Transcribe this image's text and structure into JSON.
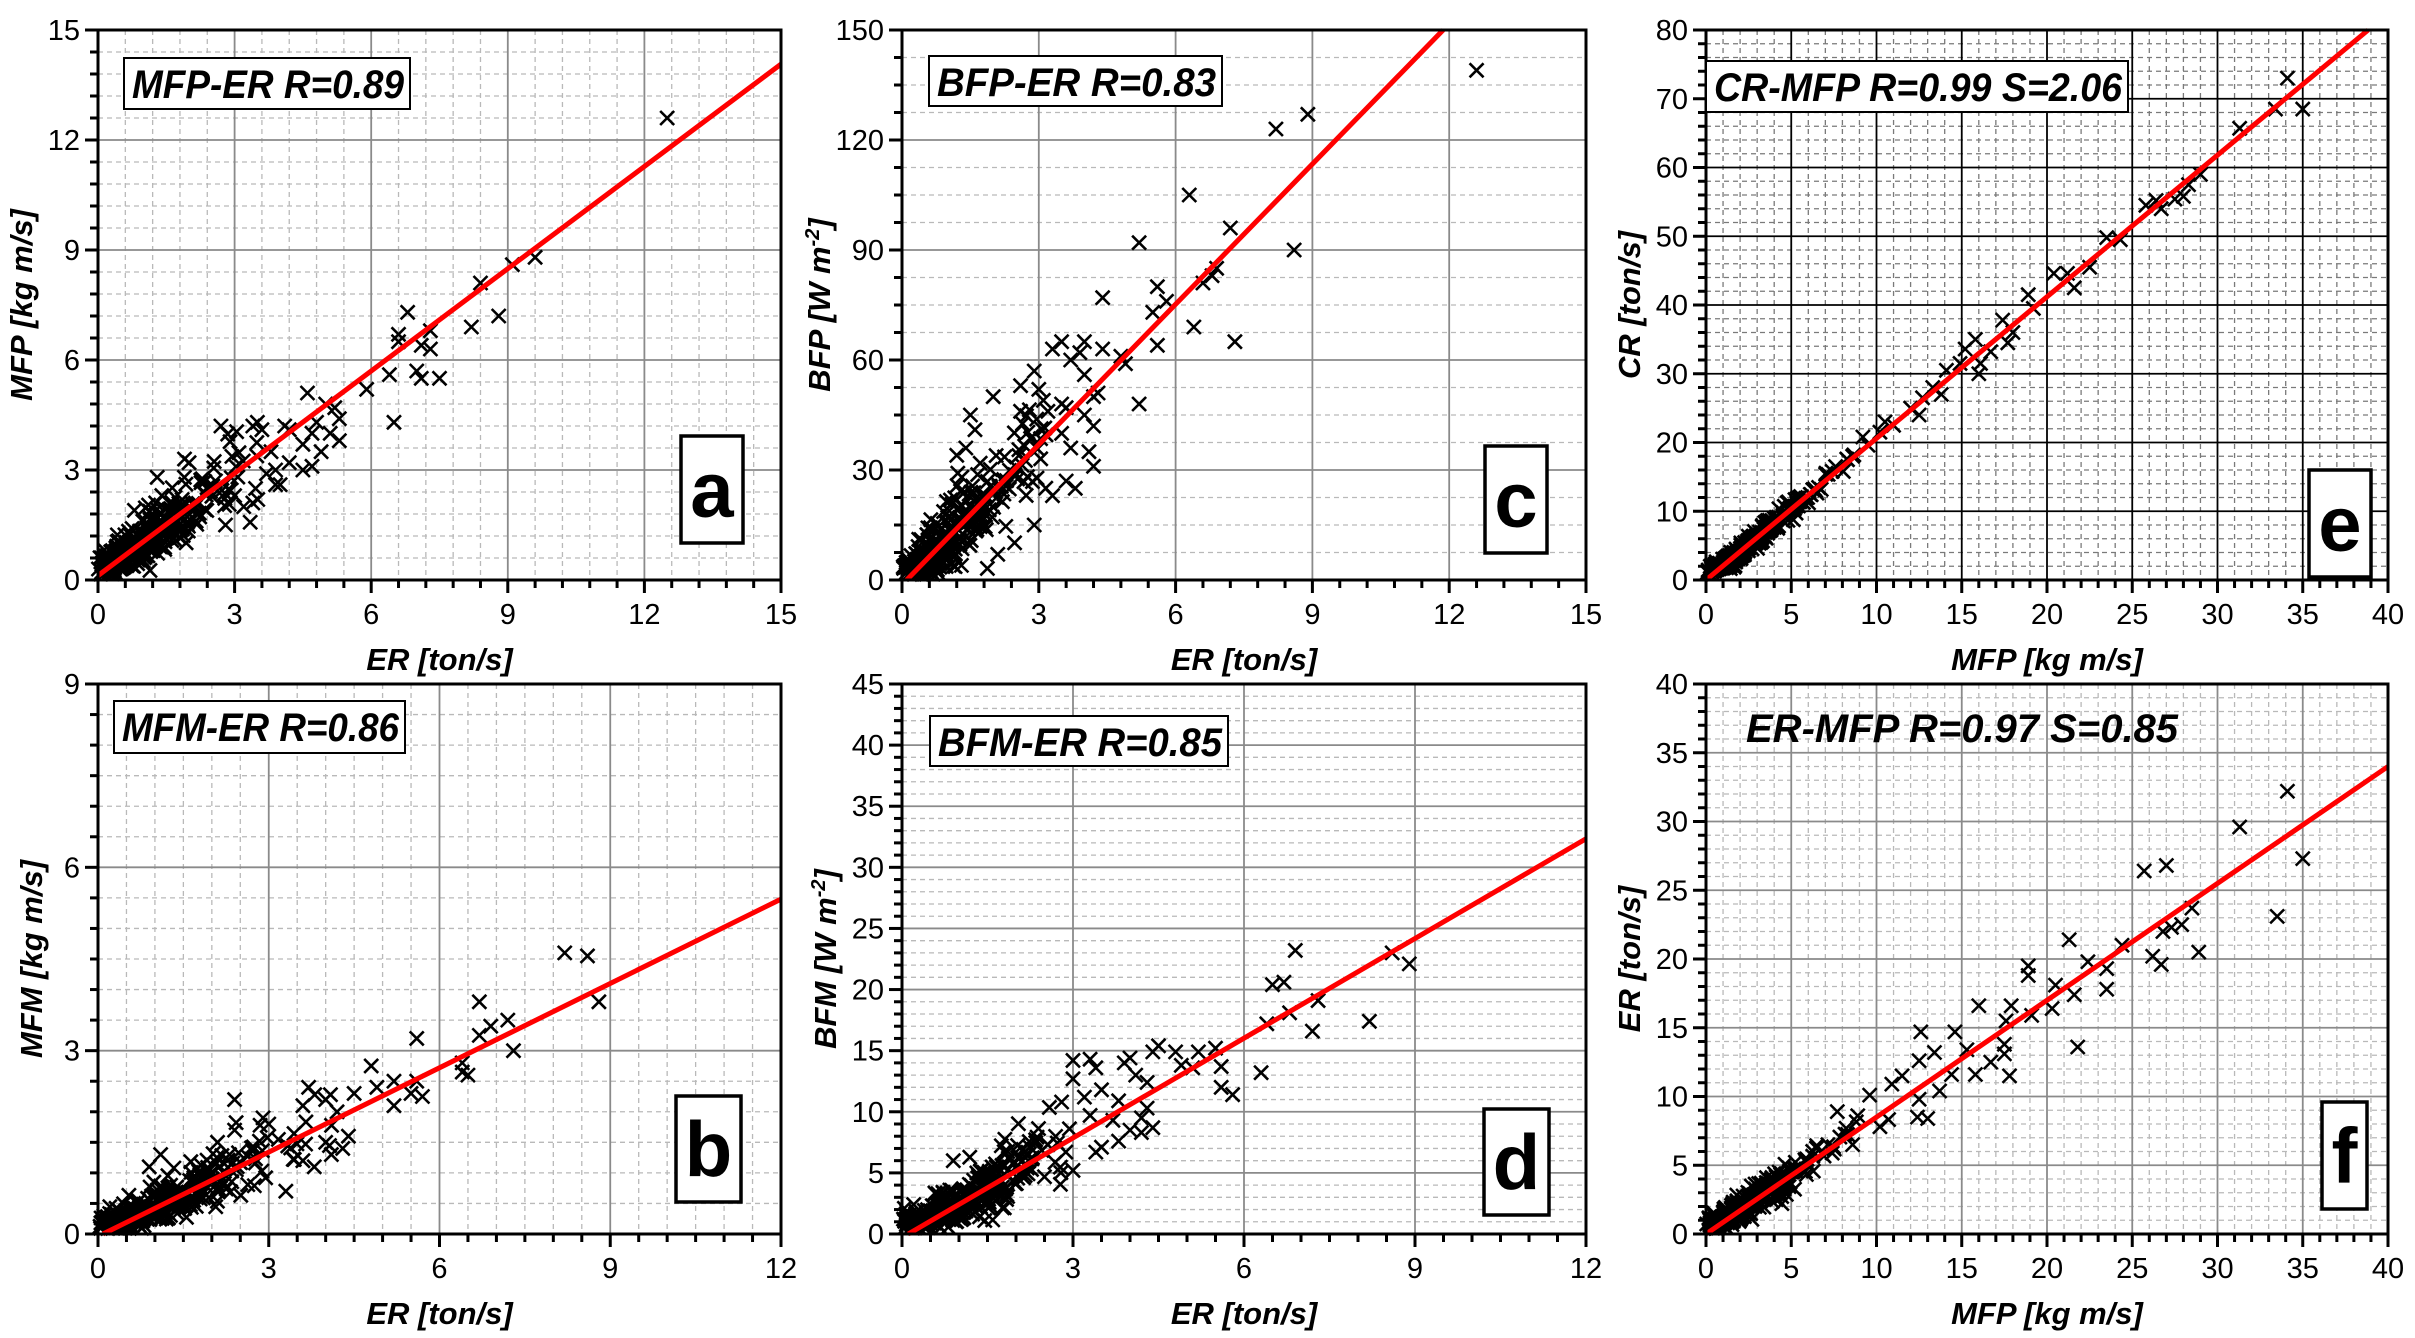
{
  "chart_data": [
    {
      "id": "a",
      "type": "scatter",
      "panel_letter": "a",
      "annotation": "MFP-ER  R=0.89",
      "xlabel": "ER [ton/s]",
      "ylabel": "MFP [kg m/s]",
      "xlim": [
        0,
        15
      ],
      "ylim": [
        0,
        15
      ],
      "xticks": [
        0,
        3,
        6,
        9,
        12,
        15
      ],
      "yticks": [
        0,
        3,
        6,
        9,
        12,
        15
      ],
      "x_minor_step": 0.6,
      "y_minor_step": 0.6,
      "grid": {
        "major": "solid-gray",
        "minor_x": true,
        "minor_y": true
      },
      "fit": {
        "slope": 0.93,
        "intercept": 0.12
      },
      "cluster": {
        "x_max": 3.6,
        "x_mean": 1.5,
        "slope": 0.93,
        "intercept": 0.12,
        "spread": 0.45,
        "count": 320
      },
      "points": [
        [
          12.5,
          12.6
        ],
        [
          9.6,
          8.8
        ],
        [
          9.1,
          8.6
        ],
        [
          8.4,
          8.1
        ],
        [
          8.8,
          7.2
        ],
        [
          8.2,
          6.9
        ],
        [
          6.8,
          7.3
        ],
        [
          6.6,
          6.7
        ],
        [
          6.6,
          6.5
        ],
        [
          7.3,
          6.8
        ],
        [
          7.1,
          6.4
        ],
        [
          7.3,
          6.3
        ],
        [
          7.0,
          5.7
        ],
        [
          7.1,
          5.5
        ],
        [
          7.5,
          5.5
        ],
        [
          6.4,
          5.6
        ],
        [
          5.9,
          5.2
        ],
        [
          6.5,
          4.3
        ],
        [
          4.6,
          5.1
        ],
        [
          5.0,
          4.8
        ],
        [
          5.2,
          4.7
        ],
        [
          5.3,
          4.4
        ],
        [
          5.3,
          3.8
        ],
        [
          5.1,
          4.0
        ],
        [
          4.7,
          4.0
        ],
        [
          4.8,
          4.3
        ],
        [
          4.5,
          3.7
        ],
        [
          4.9,
          3.5
        ],
        [
          4.7,
          3.1
        ],
        [
          4.5,
          3.0
        ],
        [
          4.2,
          3.2
        ],
        [
          4.0,
          2.6
        ],
        [
          3.9,
          2.6
        ],
        [
          4.1,
          4.2
        ],
        [
          4.2,
          4.1
        ],
        [
          3.5,
          4.3
        ],
        [
          3.4,
          4.2
        ],
        [
          3.6,
          4.1
        ],
        [
          3.8,
          3.5
        ],
        [
          3.7,
          2.9
        ],
        [
          3.9,
          3.0
        ],
        [
          3.4,
          2.1
        ],
        [
          3.2,
          2.0
        ],
        [
          3.0,
          2.3
        ],
        [
          2.8,
          1.5
        ],
        [
          2.7,
          4.2
        ],
        [
          2.0,
          3.2
        ],
        [
          1.9,
          3.3
        ],
        [
          1.3,
          2.8
        ],
        [
          0.8,
          1.9
        ]
      ]
    },
    {
      "id": "b",
      "type": "scatter",
      "panel_letter": "b",
      "annotation": "MFM-ER  R=0.86",
      "xlabel": "ER [ton/s]",
      "ylabel": "MFM [kg m/s]",
      "xlim": [
        0,
        12
      ],
      "ylim": [
        0,
        9
      ],
      "xticks": [
        0,
        3,
        6,
        9,
        12
      ],
      "yticks": [
        0,
        3,
        6,
        9
      ],
      "x_minor_step": 0.5,
      "y_minor_step": 0.5,
      "grid": {
        "major": "solid-gray",
        "minor_x": true,
        "minor_y": true
      },
      "fit": {
        "slope": 0.46,
        "intercept": -0.04
      },
      "cluster": {
        "x_max": 4.4,
        "x_mean": 1.7,
        "slope": 0.46,
        "intercept": -0.04,
        "spread": 0.25,
        "count": 320
      },
      "points": [
        [
          8.2,
          4.6
        ],
        [
          8.6,
          4.55
        ],
        [
          8.8,
          3.8
        ],
        [
          6.7,
          3.8
        ],
        [
          7.2,
          3.5
        ],
        [
          6.9,
          3.4
        ],
        [
          6.7,
          3.25
        ],
        [
          7.3,
          3.0
        ],
        [
          5.6,
          3.2
        ],
        [
          6.4,
          2.8
        ],
        [
          6.4,
          2.65
        ],
        [
          6.5,
          2.6
        ],
        [
          4.8,
          2.75
        ],
        [
          4.9,
          2.4
        ],
        [
          5.2,
          2.5
        ],
        [
          5.2,
          2.1
        ],
        [
          5.6,
          2.5
        ],
        [
          5.5,
          2.3
        ],
        [
          5.7,
          2.25
        ],
        [
          4.5,
          2.3
        ],
        [
          3.7,
          2.4
        ],
        [
          3.6,
          2.1
        ],
        [
          4.0,
          2.2
        ],
        [
          4.2,
          2.0
        ],
        [
          4.4,
          1.6
        ],
        [
          4.3,
          1.4
        ],
        [
          4.1,
          1.3
        ],
        [
          4.0,
          1.5
        ],
        [
          3.8,
          1.1
        ],
        [
          3.6,
          1.2
        ],
        [
          3.3,
          0.7
        ],
        [
          2.4,
          2.2
        ],
        [
          2.9,
          1.9
        ],
        [
          3.0,
          1.8
        ],
        [
          2.4,
          1.7
        ],
        [
          2.1,
          1.5
        ],
        [
          1.1,
          1.3
        ],
        [
          0.9,
          1.1
        ]
      ]
    },
    {
      "id": "c",
      "type": "scatter",
      "panel_letter": "c",
      "annotation": "BFP-ER   R=0.83",
      "xlabel": "ER [ton/s]",
      "ylabel": "BFP [W m⁻²]",
      "ylabel_main": "BFP [W m",
      "ylabel_sup": "-2",
      "ylabel_end": "]",
      "xlim": [
        0,
        15
      ],
      "ylim": [
        0,
        150
      ],
      "xticks": [
        0,
        3,
        6,
        9,
        12,
        15
      ],
      "yticks": [
        0,
        30,
        60,
        90,
        120,
        150
      ],
      "x_minor_step": 0,
      "y_minor_step": 7.5,
      "grid": {
        "major": "solid-gray",
        "minor_x": false,
        "minor_y": true
      },
      "fit": {
        "slope": 12.75,
        "intercept": -1.3
      },
      "cluster": {
        "x_max": 3.2,
        "x_mean": 1.5,
        "slope": 12.75,
        "intercept": -1.3,
        "spread": 6.0,
        "count": 320
      },
      "points": [
        [
          12.6,
          139
        ],
        [
          8.9,
          127
        ],
        [
          8.2,
          123
        ],
        [
          6.3,
          105
        ],
        [
          7.2,
          96
        ],
        [
          5.2,
          92
        ],
        [
          8.6,
          90
        ],
        [
          5.6,
          80
        ],
        [
          6.6,
          81
        ],
        [
          6.8,
          83
        ],
        [
          6.9,
          85
        ],
        [
          4.4,
          77
        ],
        [
          5.8,
          76
        ],
        [
          5.5,
          73
        ],
        [
          6.4,
          69
        ],
        [
          7.3,
          65
        ],
        [
          5.6,
          64
        ],
        [
          4.8,
          61
        ],
        [
          4.9,
          59
        ],
        [
          4.4,
          63
        ],
        [
          4.0,
          65
        ],
        [
          3.5,
          65
        ],
        [
          3.3,
          63
        ],
        [
          3.9,
          62
        ],
        [
          3.7,
          60
        ],
        [
          4.0,
          56
        ],
        [
          4.3,
          51
        ],
        [
          4.2,
          50
        ],
        [
          5.2,
          48
        ],
        [
          2.9,
          57
        ],
        [
          2.6,
          53
        ],
        [
          3.0,
          52
        ],
        [
          2.0,
          50
        ],
        [
          3.1,
          49
        ],
        [
          3.5,
          48
        ],
        [
          3.6,
          47
        ],
        [
          3.2,
          46
        ],
        [
          4.0,
          45
        ],
        [
          4.2,
          42
        ],
        [
          2.6,
          46
        ],
        [
          1.5,
          45
        ],
        [
          1.6,
          41
        ],
        [
          3.5,
          40
        ],
        [
          3.7,
          36
        ],
        [
          4.1,
          35
        ],
        [
          4.2,
          31
        ],
        [
          3.8,
          25
        ],
        [
          3.6,
          27
        ],
        [
          3.3,
          23
        ],
        [
          2.9,
          15
        ],
        [
          2.1,
          7
        ],
        [
          1.2,
          34
        ],
        [
          1.4,
          36
        ]
      ]
    },
    {
      "id": "d",
      "type": "scatter",
      "panel_letter": "d",
      "annotation": "BFM-ER   R=0.85",
      "xlabel": "ER [ton/s]",
      "ylabel": "BFM [W m⁻²]",
      "ylabel_main": "BFM [W m",
      "ylabel_sup": "-2",
      "ylabel_end": "]",
      "xlim": [
        0,
        12
      ],
      "ylim": [
        0,
        45
      ],
      "xticks": [
        0,
        3,
        6,
        9,
        12
      ],
      "yticks": [
        0,
        5,
        10,
        15,
        20,
        25,
        30,
        35,
        40,
        45
      ],
      "x_minor_step": 0,
      "y_minor_step": 1,
      "grid": {
        "major": "solid-gray",
        "minor_x": false,
        "minor_y": true
      },
      "fit": {
        "slope": 2.72,
        "intercept": -0.3
      },
      "cluster": {
        "x_max": 3.0,
        "x_mean": 1.5,
        "slope": 2.72,
        "intercept": -0.3,
        "spread": 1.3,
        "count": 320
      },
      "points": [
        [
          8.6,
          23.0
        ],
        [
          8.9,
          22.1
        ],
        [
          6.9,
          23.2
        ],
        [
          6.5,
          20.4
        ],
        [
          6.7,
          20.6
        ],
        [
          7.3,
          19.1
        ],
        [
          6.8,
          18.1
        ],
        [
          6.4,
          17.2
        ],
        [
          7.2,
          16.6
        ],
        [
          8.2,
          17.4
        ],
        [
          6.3,
          13.2
        ],
        [
          5.6,
          13.7
        ],
        [
          5.6,
          12.0
        ],
        [
          5.8,
          11.4
        ],
        [
          5.5,
          15.2
        ],
        [
          5.2,
          14.9
        ],
        [
          4.8,
          14.9
        ],
        [
          4.5,
          15.4
        ],
        [
          4.4,
          14.9
        ],
        [
          4.9,
          13.8
        ],
        [
          5.1,
          13.6
        ],
        [
          4.0,
          14.4
        ],
        [
          3.9,
          14.0
        ],
        [
          3.3,
          14.3
        ],
        [
          3.4,
          13.6
        ],
        [
          3.0,
          14.2
        ],
        [
          3.0,
          12.7
        ],
        [
          4.1,
          13.0
        ],
        [
          4.3,
          12.4
        ],
        [
          4.4,
          8.7
        ],
        [
          4.2,
          8.3
        ],
        [
          4.0,
          8.5
        ],
        [
          4.2,
          9.5
        ],
        [
          4.3,
          10.3
        ],
        [
          3.8,
          10.9
        ],
        [
          3.5,
          11.8
        ],
        [
          3.2,
          11.2
        ],
        [
          3.7,
          9.3
        ],
        [
          3.3,
          9.7
        ],
        [
          3.8,
          7.6
        ],
        [
          3.4,
          6.7
        ],
        [
          3.5,
          7.1
        ],
        [
          3.0,
          5.2
        ],
        [
          2.8,
          10.8
        ],
        [
          0.9,
          6.0
        ]
      ]
    },
    {
      "id": "e",
      "type": "scatter",
      "panel_letter": "e",
      "annotation": "CR-MFP  R=0.99  S=2.06",
      "xlabel": "MFP [kg m/s]",
      "ylabel": "CR [ton/s]",
      "xlim": [
        0,
        40
      ],
      "ylim": [
        0,
        80
      ],
      "xticks": [
        0,
        5,
        10,
        15,
        20,
        25,
        30,
        35,
        40
      ],
      "yticks": [
        0,
        10,
        20,
        30,
        40,
        50,
        60,
        70,
        80
      ],
      "x_minor_step": 1,
      "y_minor_step": 2,
      "grid": {
        "major": "solid-black",
        "minor_x": true,
        "minor_y": true
      },
      "fit": {
        "slope": 2.06,
        "intercept": 0.0
      },
      "cluster": {
        "x_max": 11,
        "x_mean": 3.5,
        "slope": 2.06,
        "intercept": 0.0,
        "spread": 0.8,
        "count": 320
      },
      "points": [
        [
          34.1,
          73.0
        ],
        [
          33.4,
          68.5
        ],
        [
          35.0,
          68.5
        ],
        [
          31.3,
          65.7
        ],
        [
          29.0,
          59.0
        ],
        [
          28.3,
          57.5
        ],
        [
          28.0,
          55.8
        ],
        [
          27.5,
          55.4
        ],
        [
          26.7,
          54.0
        ],
        [
          26.4,
          55.2
        ],
        [
          25.8,
          54.5
        ],
        [
          24.3,
          49.5
        ],
        [
          23.5,
          49.8
        ],
        [
          22.5,
          45.5
        ],
        [
          21.6,
          42.5
        ],
        [
          21.2,
          44.6
        ],
        [
          20.4,
          44.6
        ],
        [
          19.2,
          39.5
        ],
        [
          18.9,
          41.5
        ],
        [
          18.0,
          36.0
        ],
        [
          17.7,
          34.5
        ],
        [
          17.4,
          37.8
        ],
        [
          16.7,
          33.2
        ],
        [
          16.0,
          30.0
        ],
        [
          16.1,
          31.5
        ],
        [
          15.8,
          35.0
        ],
        [
          15.2,
          33.6
        ],
        [
          14.9,
          31.5
        ],
        [
          14.1,
          30.5
        ],
        [
          13.8,
          27.0
        ],
        [
          13.3,
          28.0
        ],
        [
          12.5,
          24.0
        ],
        [
          12.7,
          26.5
        ],
        [
          12.0,
          25.0
        ],
        [
          11.0,
          22.5
        ],
        [
          10.5,
          23.0
        ],
        [
          10.2,
          21.5
        ],
        [
          9.5,
          19.6
        ],
        [
          9.2,
          20.8
        ],
        [
          8.6,
          18.0
        ],
        [
          8.3,
          17.5
        ],
        [
          7.6,
          16.5
        ],
        [
          7.4,
          15.8
        ]
      ]
    },
    {
      "id": "f",
      "type": "scatter",
      "panel_letter": "f",
      "annotation": "ER-MFP R=0.97  S=0.85",
      "annotation_boxed": false,
      "xlabel": "MFP [kg m/s]",
      "ylabel": "ER [ton/s]",
      "xlim": [
        0,
        40
      ],
      "ylim": [
        0,
        40
      ],
      "xticks": [
        0,
        5,
        10,
        15,
        20,
        25,
        30,
        35,
        40
      ],
      "yticks": [
        0,
        5,
        10,
        15,
        20,
        25,
        30,
        35,
        40
      ],
      "x_minor_step": 1,
      "y_minor_step": 1,
      "grid": {
        "major": "solid-gray",
        "minor_x": true,
        "minor_y": true
      },
      "fit": {
        "slope": 0.85,
        "intercept": 0.0
      },
      "cluster": {
        "x_max": 11,
        "x_mean": 3.5,
        "slope": 0.85,
        "intercept": 0.0,
        "spread": 0.7,
        "count": 320
      },
      "points": [
        [
          34.1,
          32.2
        ],
        [
          31.3,
          29.6
        ],
        [
          35.0,
          27.3
        ],
        [
          33.5,
          23.1
        ],
        [
          27.0,
          26.8
        ],
        [
          25.7,
          26.4
        ],
        [
          28.5,
          23.7
        ],
        [
          27.9,
          22.5
        ],
        [
          27.3,
          22.3
        ],
        [
          26.8,
          22.0
        ],
        [
          28.9,
          20.5
        ],
        [
          26.2,
          20.2
        ],
        [
          26.7,
          19.6
        ],
        [
          24.4,
          21.0
        ],
        [
          23.5,
          19.3
        ],
        [
          23.5,
          17.8
        ],
        [
          22.4,
          19.8
        ],
        [
          21.3,
          21.4
        ],
        [
          21.6,
          17.4
        ],
        [
          21.8,
          13.6
        ],
        [
          20.5,
          18.1
        ],
        [
          20.3,
          16.4
        ],
        [
          19.1,
          15.9
        ],
        [
          18.9,
          19.5
        ],
        [
          18.9,
          18.8
        ],
        [
          17.9,
          16.6
        ],
        [
          17.6,
          15.5
        ],
        [
          17.5,
          13.8
        ],
        [
          17.5,
          13.1
        ],
        [
          17.8,
          11.5
        ],
        [
          16.7,
          12.5
        ],
        [
          16.0,
          16.6
        ],
        [
          15.8,
          11.6
        ],
        [
          15.3,
          13.4
        ],
        [
          14.6,
          14.7
        ],
        [
          14.4,
          11.6
        ],
        [
          13.4,
          13.2
        ],
        [
          13.7,
          10.4
        ],
        [
          12.6,
          14.7
        ],
        [
          12.5,
          12.6
        ],
        [
          12.5,
          9.8
        ],
        [
          12.4,
          8.5
        ],
        [
          13.0,
          8.4
        ],
        [
          11.5,
          11.5
        ],
        [
          10.9,
          10.9
        ],
        [
          10.2,
          7.8
        ],
        [
          9.6,
          10.1
        ],
        [
          8.9,
          8.6
        ],
        [
          8.6,
          6.5
        ],
        [
          7.7,
          8.9
        ]
      ]
    }
  ]
}
